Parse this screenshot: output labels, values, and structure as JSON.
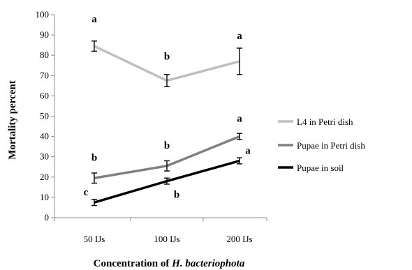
{
  "chart_data": {
    "type": "line",
    "categories": [
      "50 IJs",
      "100 IJs",
      "200 IJs"
    ],
    "xlabel_prefix": "Concentration of ",
    "xlabel_species": "H. bacteriophota",
    "ylabel": "Mortality percent",
    "ylim": [
      0,
      100
    ],
    "yticks": [
      0,
      10,
      20,
      30,
      40,
      50,
      60,
      70,
      80,
      90,
      100
    ],
    "grid": false,
    "legend_position": "right",
    "series": [
      {
        "name": "L4 in Petri dish",
        "color": "#bfbfbf",
        "values": [
          84.5,
          67.5,
          77
        ],
        "errors": [
          2.5,
          3,
          6.5
        ],
        "letters": [
          "a",
          "b",
          "a"
        ]
      },
      {
        "name": "Pupae in Petri dish",
        "color": "#808080",
        "values": [
          19.5,
          25.5,
          40
        ],
        "errors": [
          2.5,
          2.5,
          1.5
        ],
        "letters": [
          "b",
          "b",
          "a"
        ]
      },
      {
        "name": "Pupae in soil",
        "color": "#000000",
        "values": [
          7.5,
          18,
          28
        ],
        "errors": [
          1.5,
          1.5,
          1.5
        ],
        "letters": [
          "c",
          "b",
          "a"
        ]
      }
    ]
  }
}
